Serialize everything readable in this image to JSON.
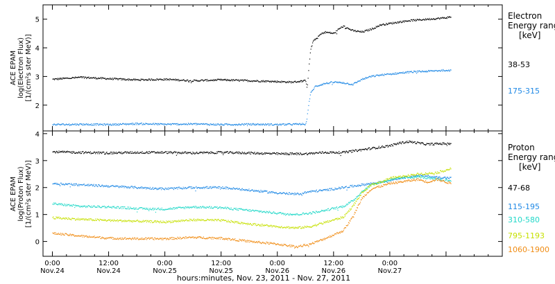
{
  "chart_data": [
    {
      "type": "scatter",
      "ylabel_lines": [
        "ACE EPAM",
        "log(Electron Flux)",
        "[1/(cm²s ster MeV)]"
      ],
      "legend_title_lines": [
        "Electron",
        "Energy ranges",
        "[keV]"
      ],
      "ylim": [
        1.1,
        5.5
      ],
      "y_ticks": [
        2,
        3,
        4,
        5
      ],
      "x_unit": "hours since Nov.24 00:00",
      "series": [
        {
          "name": "38-53",
          "color": "#000000",
          "x": [
            0,
            6,
            12,
            18,
            24,
            30,
            36,
            42,
            48,
            51,
            54,
            54.3,
            54.6,
            55,
            55.5,
            56,
            56.5,
            57,
            58,
            60,
            61,
            62,
            64,
            66,
            68,
            70,
            72,
            74,
            76,
            78,
            80,
            82,
            84,
            85
          ],
          "y": [
            2.9,
            2.97,
            2.92,
            2.88,
            2.9,
            2.85,
            2.88,
            2.85,
            2.82,
            2.8,
            2.85,
            2.6,
            3.2,
            3.9,
            4.2,
            4.3,
            4.35,
            4.45,
            4.55,
            4.5,
            4.65,
            4.75,
            4.6,
            4.55,
            4.65,
            4.8,
            4.85,
            4.9,
            4.95,
            4.97,
            5.0,
            5.02,
            5.05,
            5.08
          ]
        },
        {
          "name": "175-315",
          "color": "#1e88e5",
          "x": [
            0,
            6,
            12,
            18,
            24,
            30,
            36,
            42,
            48,
            51,
            54,
            54.3,
            54.6,
            55,
            56,
            58,
            60,
            62,
            64,
            66,
            68,
            70,
            72,
            74,
            76,
            78,
            80,
            82,
            84,
            85
          ],
          "y": [
            1.32,
            1.33,
            1.32,
            1.35,
            1.33,
            1.34,
            1.32,
            1.33,
            1.32,
            1.33,
            1.34,
            1.6,
            2.0,
            2.4,
            2.65,
            2.75,
            2.8,
            2.78,
            2.72,
            2.9,
            3.0,
            3.05,
            3.08,
            3.12,
            3.15,
            3.17,
            3.18,
            3.2,
            3.22,
            3.22
          ]
        }
      ]
    },
    {
      "type": "scatter",
      "ylabel_lines": [
        "ACE EPAM",
        "log(Proton Flux)",
        "[1/(cm²s ster MeV)]"
      ],
      "legend_title_lines": [
        "Proton",
        "Energy ranges",
        "[keV]"
      ],
      "ylim": [
        -0.55,
        4.1
      ],
      "y_ticks": [
        0,
        1,
        2,
        3,
        4
      ],
      "x_unit": "hours since Nov.24 00:00",
      "series": [
        {
          "name": "47-68",
          "color": "#000000",
          "x": [
            0,
            6,
            12,
            18,
            24,
            30,
            36,
            42,
            48,
            54,
            58,
            62,
            66,
            70,
            72,
            74,
            76,
            78,
            80,
            82,
            84,
            85
          ],
          "y": [
            3.32,
            3.3,
            3.28,
            3.3,
            3.3,
            3.28,
            3.3,
            3.28,
            3.25,
            3.25,
            3.3,
            3.3,
            3.4,
            3.5,
            3.55,
            3.65,
            3.7,
            3.65,
            3.6,
            3.62,
            3.63,
            3.63
          ]
        },
        {
          "name": "115-195",
          "color": "#1e88e5",
          "x": [
            0,
            6,
            12,
            18,
            24,
            30,
            36,
            42,
            48,
            52,
            55,
            58,
            62,
            66,
            70,
            74,
            78,
            82,
            85
          ],
          "y": [
            2.15,
            2.1,
            2.05,
            2.0,
            1.95,
            2.0,
            2.0,
            1.9,
            1.8,
            1.75,
            1.85,
            1.9,
            2.0,
            2.1,
            2.2,
            2.35,
            2.45,
            2.38,
            2.35
          ]
        },
        {
          "name": "310-580",
          "color": "#20d8c8",
          "x": [
            0,
            6,
            12,
            18,
            24,
            30,
            36,
            42,
            48,
            52,
            55,
            58,
            62,
            64,
            66,
            68,
            70,
            74,
            78,
            82,
            85
          ],
          "y": [
            1.4,
            1.3,
            1.28,
            1.22,
            1.2,
            1.28,
            1.25,
            1.15,
            1.05,
            1.0,
            1.05,
            1.15,
            1.3,
            1.5,
            1.85,
            2.1,
            2.2,
            2.35,
            2.4,
            2.3,
            2.25
          ]
        },
        {
          "name": "795-1193",
          "color": "#c6e000",
          "x": [
            0,
            6,
            12,
            18,
            24,
            30,
            36,
            42,
            48,
            52,
            55,
            58,
            62,
            64,
            66,
            68,
            70,
            72,
            74,
            76,
            78,
            80,
            82,
            84,
            85
          ],
          "y": [
            0.88,
            0.82,
            0.78,
            0.75,
            0.72,
            0.8,
            0.78,
            0.65,
            0.55,
            0.5,
            0.55,
            0.7,
            0.9,
            1.3,
            1.8,
            2.1,
            2.2,
            2.35,
            2.4,
            2.45,
            2.5,
            2.52,
            2.55,
            2.65,
            2.7
          ]
        },
        {
          "name": "1060-1900",
          "color": "#f08c14",
          "x": [
            0,
            6,
            12,
            18,
            24,
            30,
            36,
            42,
            48,
            52,
            55,
            58,
            62,
            64,
            66,
            68,
            70,
            72,
            74,
            76,
            78,
            80,
            82,
            84,
            85
          ],
          "y": [
            0.3,
            0.2,
            0.12,
            0.1,
            0.1,
            0.15,
            0.12,
            0.0,
            -0.1,
            -0.2,
            -0.1,
            0.1,
            0.4,
            0.9,
            1.6,
            1.95,
            2.05,
            2.15,
            2.2,
            2.25,
            2.3,
            2.2,
            2.3,
            2.2,
            2.15
          ]
        }
      ]
    }
  ],
  "x_axis": {
    "xlim": [
      -2,
      96
    ],
    "ticks": [
      {
        "x": 0,
        "time": "0:00",
        "date": "Nov.24"
      },
      {
        "x": 12,
        "time": "12:00",
        "date": "Nov.24"
      },
      {
        "x": 24,
        "time": "0:00",
        "date": "Nov.25"
      },
      {
        "x": 36,
        "time": "12:00",
        "date": "Nov.25"
      },
      {
        "x": 48,
        "time": "0:00",
        "date": "Nov.26"
      },
      {
        "x": 60,
        "time": "12:00",
        "date": "Nov.26"
      },
      {
        "x": 72,
        "time": "0:00",
        "date": "Nov.27"
      }
    ],
    "label": "hours:minutes, Nov. 23, 2011 - Nov. 27, 2011"
  }
}
